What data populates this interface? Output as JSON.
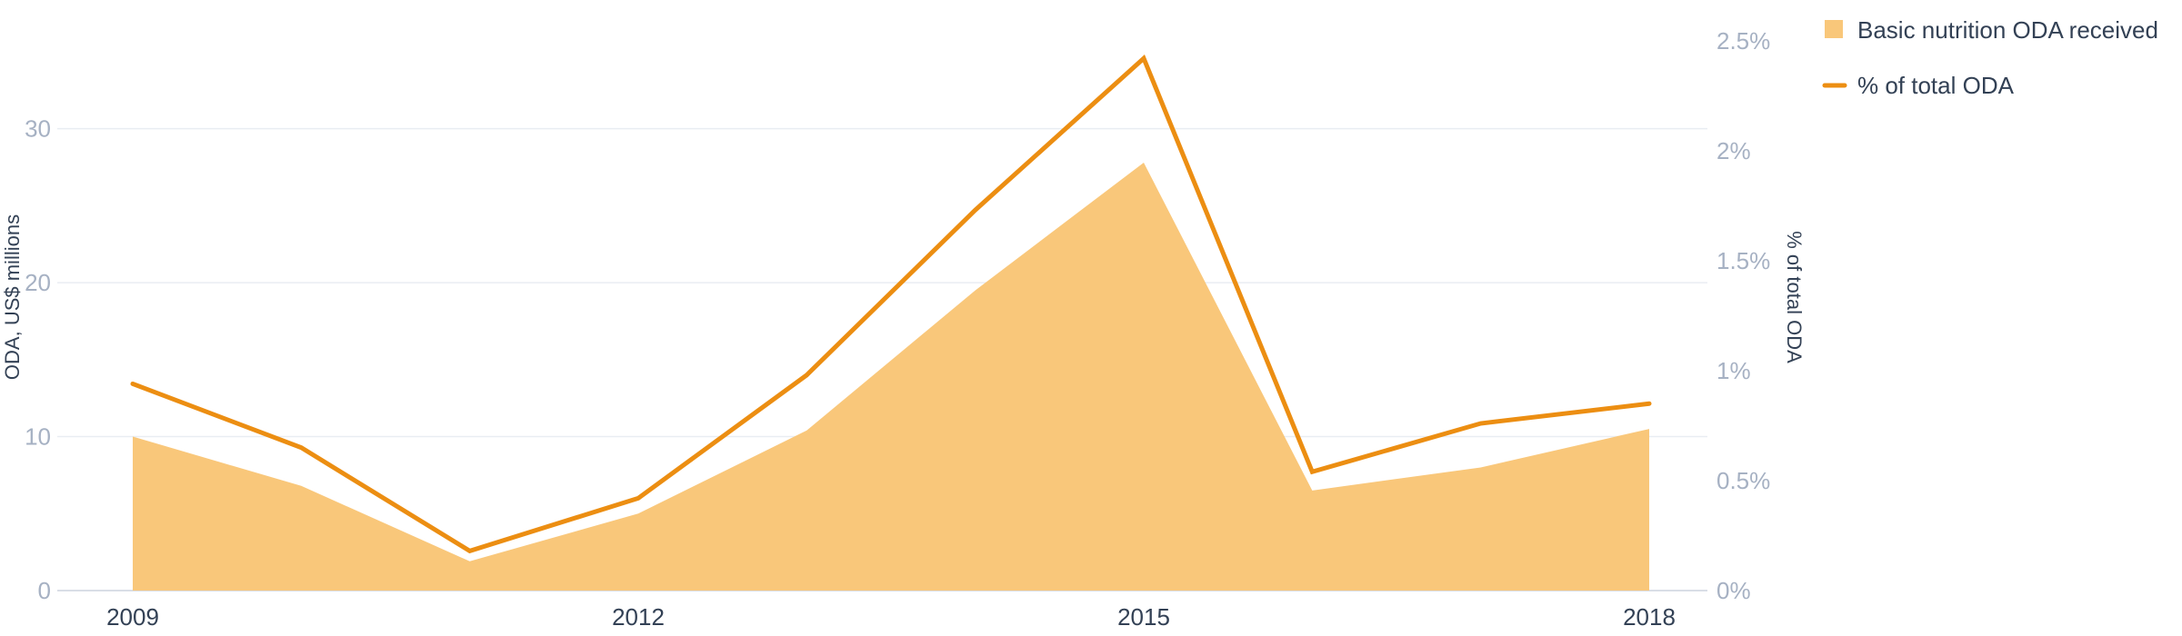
{
  "chart_data": {
    "type": "area",
    "x": [
      2009,
      2010,
      2011,
      2012,
      2013,
      2014,
      2015,
      2016,
      2017,
      2018
    ],
    "x_tick_labels": [
      "2009",
      "2012",
      "2015",
      "2018"
    ],
    "series": [
      {
        "name": "Basic nutrition ODA received",
        "kind": "area",
        "axis": "left",
        "values": [
          10.0,
          6.8,
          1.9,
          5.0,
          10.4,
          19.5,
          27.8,
          6.5,
          8.0,
          10.5
        ]
      },
      {
        "name": "% of total ODA",
        "kind": "line",
        "axis": "right",
        "values": [
          0.94,
          0.65,
          0.18,
          0.42,
          0.98,
          1.73,
          2.42,
          0.54,
          0.76,
          0.85
        ]
      }
    ],
    "left_axis": {
      "label": "ODA, US$ millions",
      "ticks": [
        0,
        10,
        20,
        30
      ],
      "tick_labels": [
        "0",
        "10",
        "20",
        "30"
      ],
      "range": [
        0,
        36
      ]
    },
    "right_axis": {
      "label": "% of total ODA",
      "ticks": [
        0,
        0.5,
        1,
        1.5,
        2,
        2.5
      ],
      "tick_labels": [
        "0%",
        "0.5%",
        "1%",
        "1.5%",
        "2%",
        "2.5%"
      ],
      "range": [
        0,
        2.52
      ]
    },
    "grid": true,
    "legend_position": "top-right",
    "colors": {
      "area": "#f9c77a",
      "line": "#ec8e12",
      "left_ticks": "#a6b1c3",
      "right_ticks": "#a6b1c3",
      "x_ticks": "#334155",
      "text": "#334155"
    }
  }
}
